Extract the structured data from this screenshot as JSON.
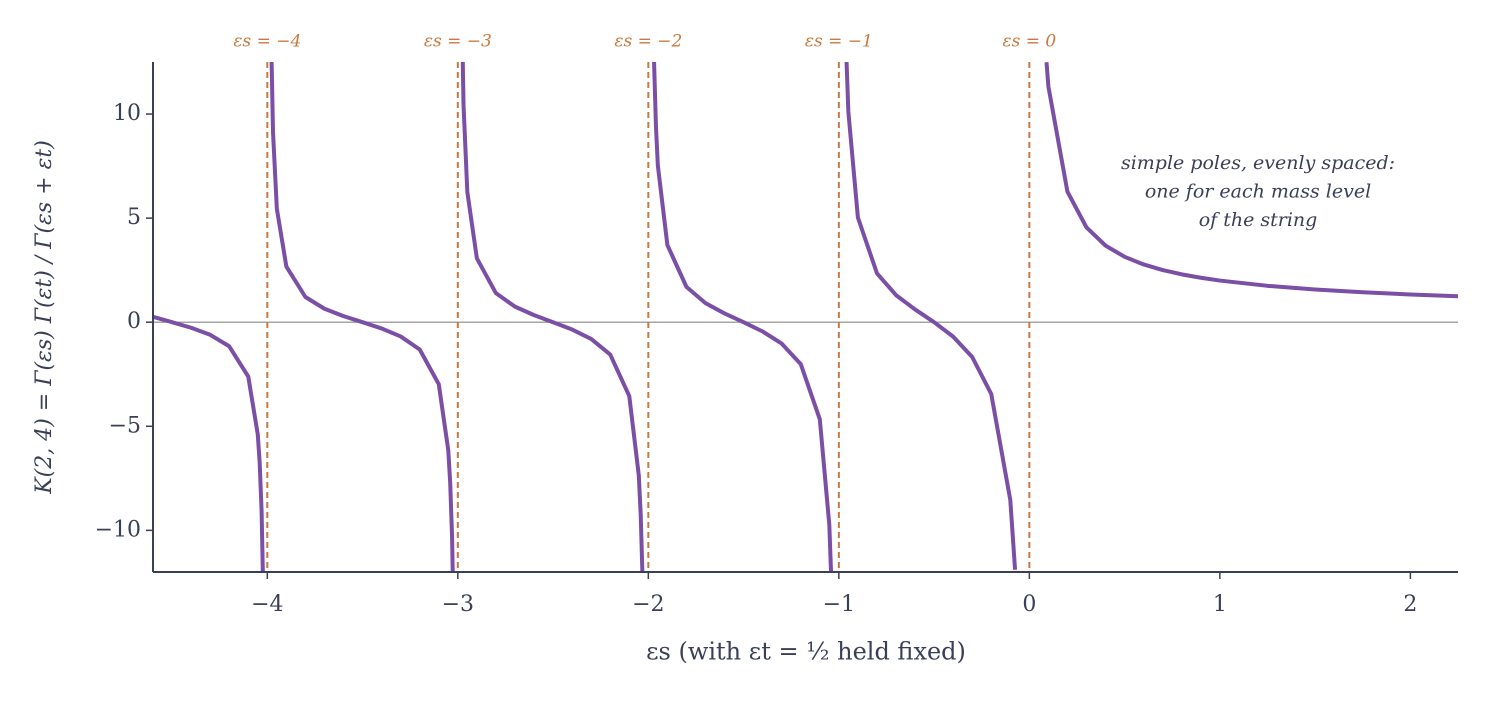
{
  "chart_data": {
    "type": "line",
    "x_label": "εs   (with εt = ½ held fixed)",
    "y_label": "K(2, 4) = Γ(εs) Γ(εt) / Γ(εs + εt)",
    "annotation": [
      "simple poles, evenly spaced:",
      "one for each mass level",
      "of the string"
    ],
    "vlines": [
      {
        "value": -4,
        "label": "εs = −4"
      },
      {
        "value": -3,
        "label": "εs = −3"
      },
      {
        "value": -2,
        "label": "εs = −2"
      },
      {
        "value": -1,
        "label": "εs = −1"
      },
      {
        "value": 0,
        "label": "εs = 0"
      }
    ],
    "vline_color": "#c87941",
    "hline": 0,
    "color": "#7b4fa6",
    "x": [
      -4.6,
      -4.5,
      -4.4,
      -4.3,
      -4.2,
      -4.1,
      -4.05,
      -4.04,
      -4.03,
      -4.02,
      -4,
      -3.98,
      -3.97,
      -3.95,
      -3.9,
      -3.8,
      -3.7,
      -3.6,
      -3.5,
      -3.4,
      -3.3,
      -3.2,
      -3.1,
      -3.05,
      -3.04,
      -3.03,
      -3.02,
      -3,
      -2.98,
      -2.97,
      -2.95,
      -2.9,
      -2.8,
      -2.7,
      -2.6,
      -2.5,
      -2.4,
      -2.3,
      -2.2,
      -2.1,
      -2.05,
      -2.04,
      -2.03,
      -2,
      -1.97,
      -1.96,
      -1.95,
      -1.9,
      -1.8,
      -1.7,
      -1.6,
      -1.5,
      -1.4,
      -1.3,
      -1.2,
      -1.1,
      -1.05,
      -1.04,
      -1,
      -0.96,
      -0.95,
      -0.9,
      -0.8,
      -0.7,
      -0.6,
      -0.5,
      -0.4,
      -0.3,
      -0.2,
      -0.1,
      -0.075,
      0,
      0.09,
      0.1,
      0.2,
      0.3,
      0.4,
      0.5,
      0.6,
      0.7,
      0.8,
      0.9,
      1,
      1.25,
      1.5,
      1.75,
      2,
      2.25
    ],
    "values": [
      0.261,
      0,
      -0.267,
      -0.604,
      -1.156,
      -2.614,
      -5.392,
      -6.765,
      -9.066,
      -13.57,
      null,
      13.68,
      9.12,
      5.455,
      2.675,
      1.211,
      0.647,
      0.293,
      0,
      -0.301,
      -0.683,
      -1.312,
      -2.977,
      -6.151,
      -7.72,
      -10.35,
      -15.5,
      null,
      15.65,
      10.43,
      6.245,
      3.068,
      1.395,
      0.748,
      0.34,
      0,
      -0.353,
      -0.805,
      -1.555,
      -3.549,
      -7.357,
      -9.24,
      -12.4,
      null,
      12.54,
      9.41,
      7.52,
      3.707,
      1.698,
      0.918,
      0.421,
      0,
      -0.446,
      -1.028,
      -2.012,
      -4.658,
      -9.73,
      -12.24,
      null,
      12.63,
      10.11,
      5.031,
      2.351,
      1.301,
      0.613,
      0,
      -0.694,
      -1.671,
      -3.449,
      -8.54,
      -11.89,
      null,
      12.49,
      11.32,
      6.268,
      4.555,
      3.679,
      3.1416,
      2.774,
      2.506,
      2.299,
      2.135,
      2,
      1.748,
      1.571,
      1.438,
      1.333,
      1.249
    ],
    "xlim": [
      -4.6,
      2.25
    ],
    "ylim": [
      -12,
      12.5
    ],
    "xticks": [
      {
        "value": -4,
        "label": "−4"
      },
      {
        "value": -3,
        "label": "−3"
      },
      {
        "value": -2,
        "label": "−2"
      },
      {
        "value": -1,
        "label": "−1"
      },
      0,
      1,
      2
    ],
    "yticks": [
      {
        "value": -10,
        "label": "−10"
      },
      {
        "value": -5,
        "label": "−5"
      },
      0,
      5,
      10
    ]
  }
}
